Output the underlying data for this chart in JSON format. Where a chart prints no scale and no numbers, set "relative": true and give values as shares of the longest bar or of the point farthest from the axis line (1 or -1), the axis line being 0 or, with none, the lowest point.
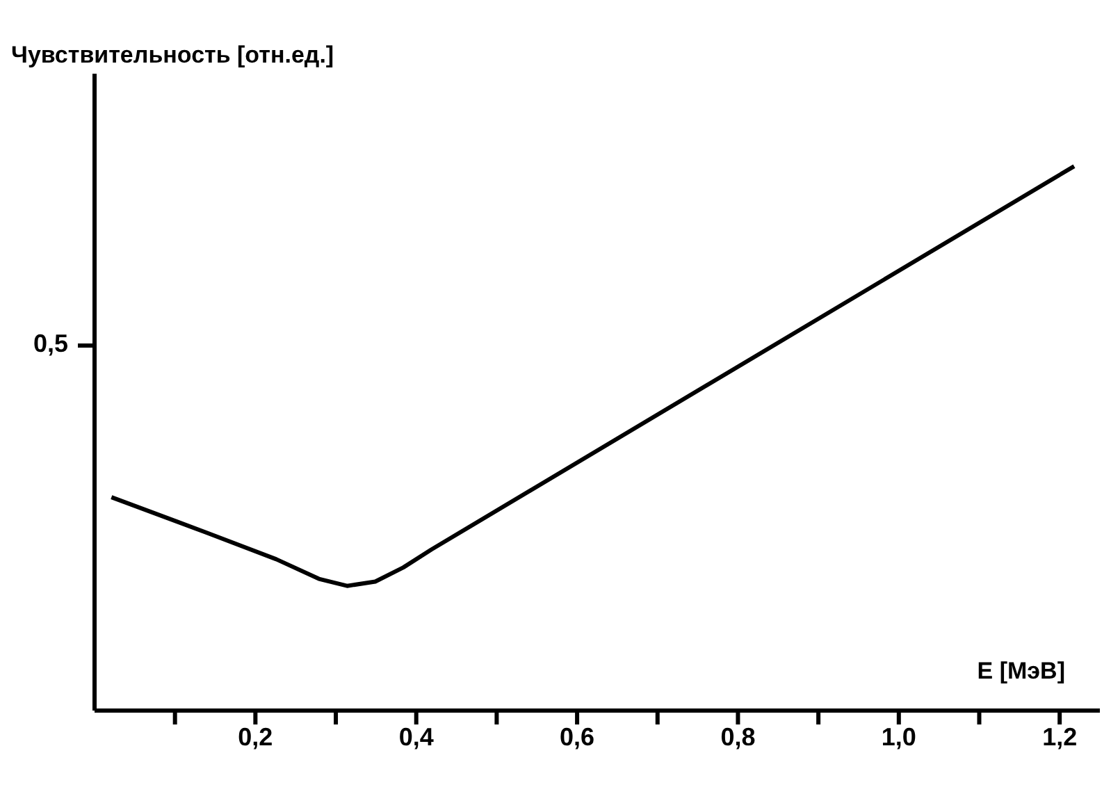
{
  "chart_data": {
    "type": "line",
    "relative": true,
    "ylabel": "Чувствительность [отн.ед.]",
    "xlabel": "E [МэВ]",
    "x": [
      0.021,
      0.139,
      0.226,
      0.279,
      0.314,
      0.349,
      0.384,
      0.419,
      1.218
    ],
    "values": [
      0.392,
      0.327,
      0.278,
      0.242,
      0.229,
      0.237,
      0.263,
      0.296,
      1.0
    ],
    "color": "#000000",
    "marker": "none",
    "grid": false,
    "xlim": [
      0,
      1.25
    ],
    "xticks": [
      {
        "value": 0.1,
        "label": null
      },
      {
        "value": 0.2,
        "label": "0,2"
      },
      {
        "value": 0.3,
        "label": null
      },
      {
        "value": 0.4,
        "label": "0,4"
      },
      {
        "value": 0.5,
        "label": null
      },
      {
        "value": 0.6,
        "label": "0,6"
      },
      {
        "value": 0.7,
        "label": null
      },
      {
        "value": 0.8,
        "label": "0,8"
      },
      {
        "value": 0.9,
        "label": null
      },
      {
        "value": 1.0,
        "label": "1,0"
      },
      {
        "value": 1.1,
        "label": null
      },
      {
        "value": 1.2,
        "label": "1,2"
      }
    ],
    "annotations": [
      "0,5"
    ]
  }
}
